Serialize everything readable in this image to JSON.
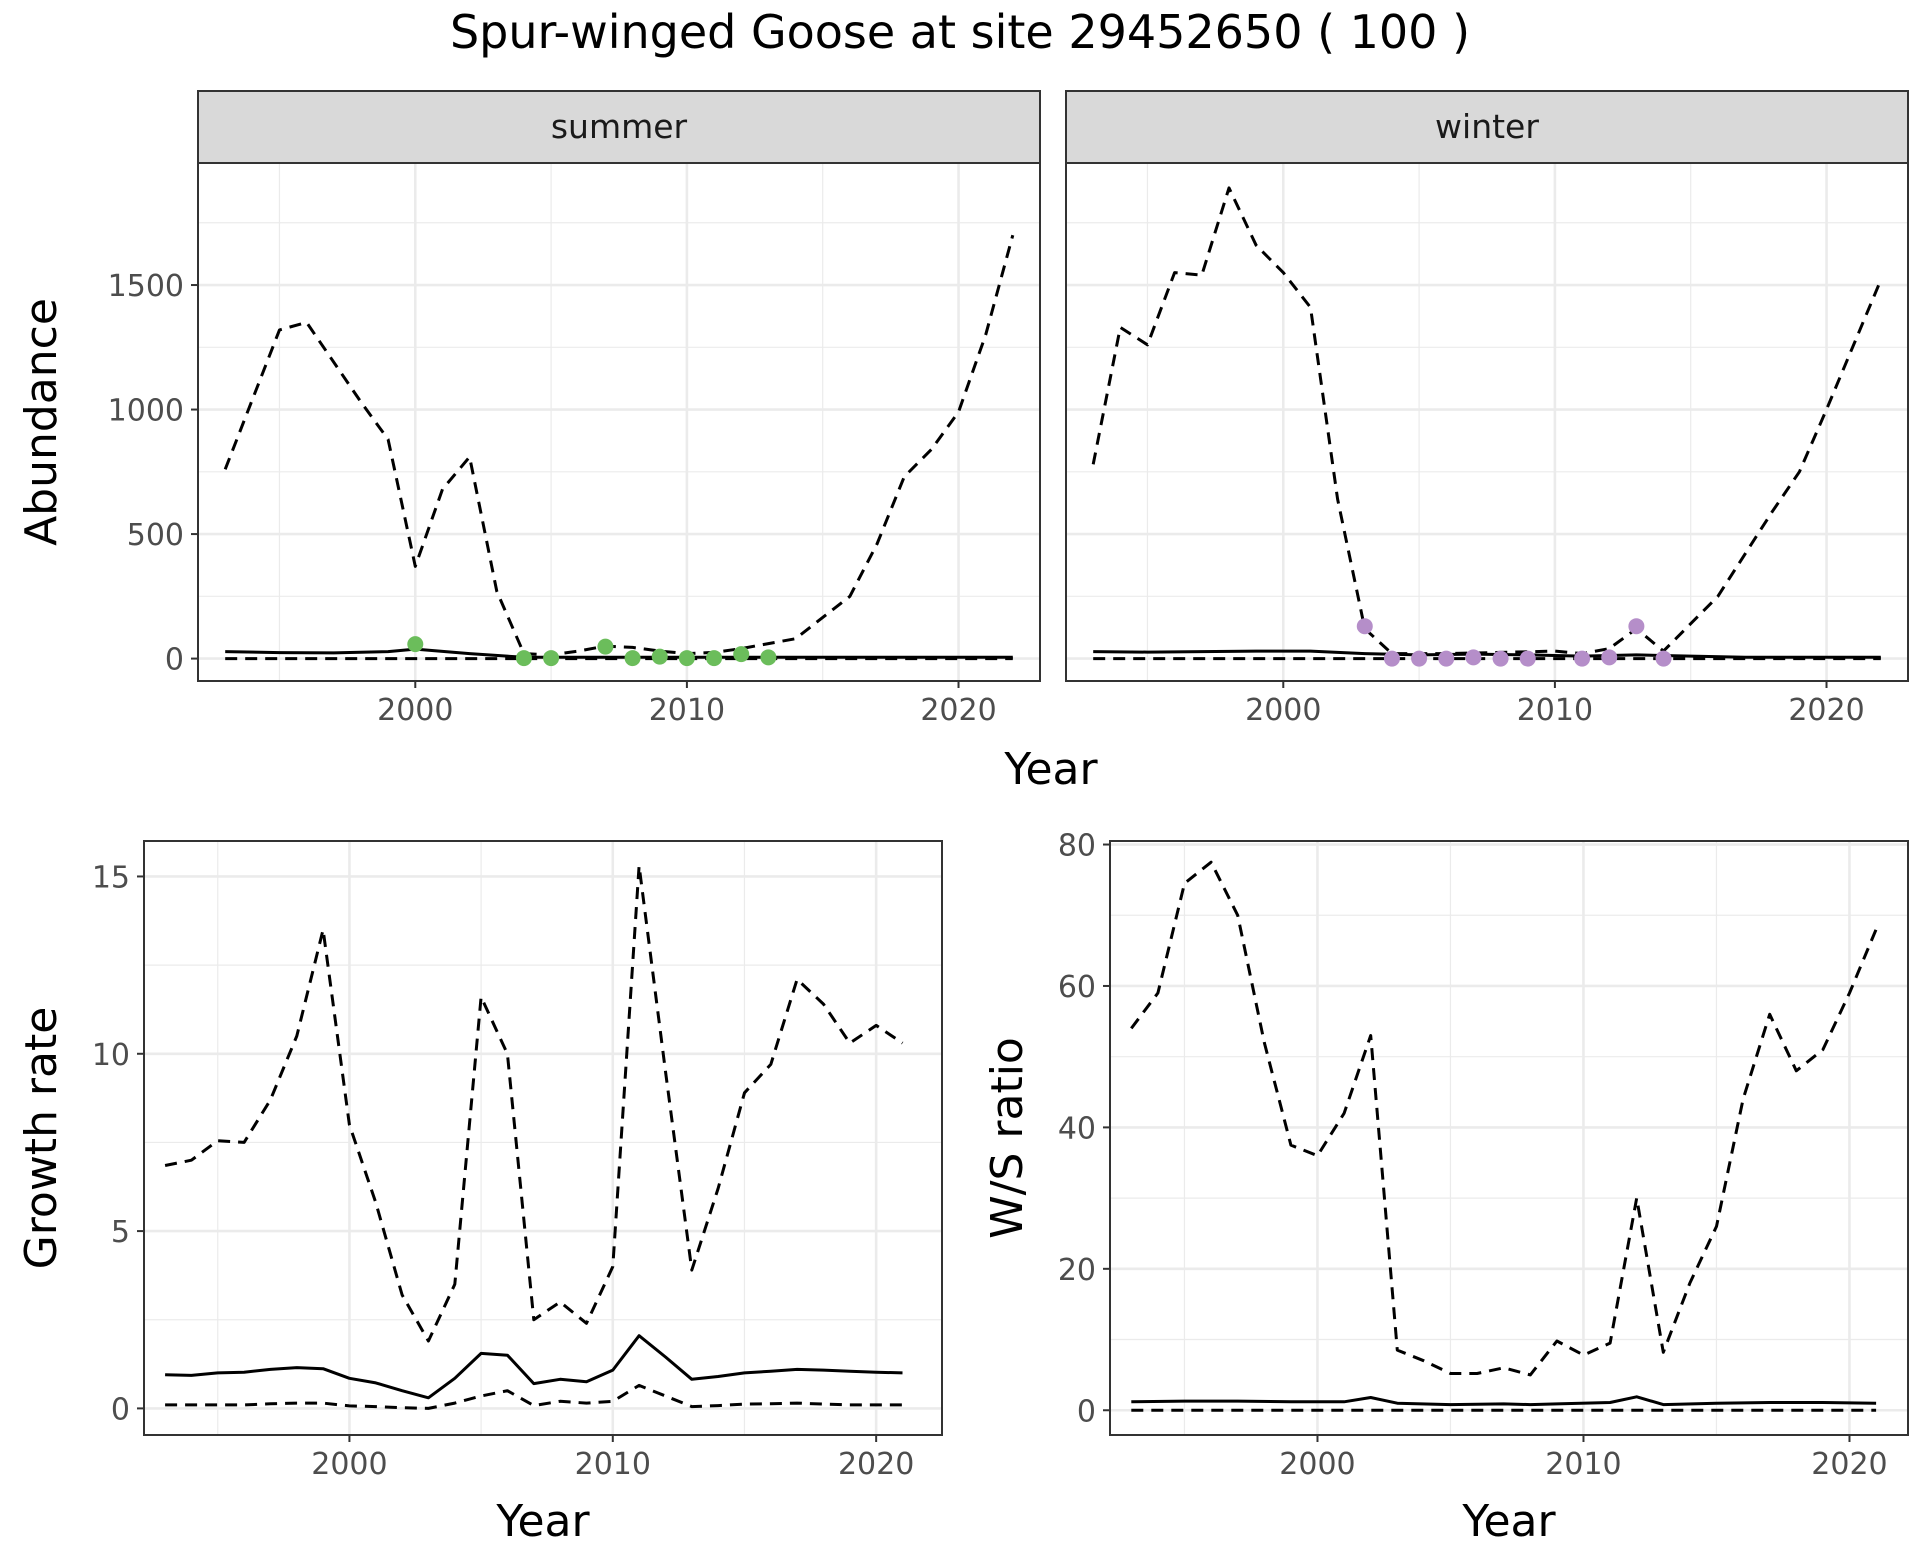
{
  "chart_data": [
    {
      "type": "line",
      "title": "Spur-winged Goose at site 29452650 ( 100 )",
      "xlabel": "Year",
      "ylabel": "Abundance",
      "xlim": [
        1992,
        2023
      ],
      "ylim": [
        -90,
        1990
      ],
      "x_ticks": [
        2000,
        2010,
        2020
      ],
      "y_ticks": [
        0,
        500,
        1000,
        1500
      ],
      "grid": true,
      "panels": [
        {
          "label": "summer",
          "point_color": "#6bbd5b",
          "series": [
            {
              "line": "solid",
              "x": [
                1993,
                1995,
                1997,
                1999,
                2000,
                2002,
                2004,
                2006,
                2008,
                2010,
                2012,
                2014,
                2016,
                2018,
                2020,
                2022
              ],
              "values": [
                28,
                24,
                23,
                28,
                38,
                20,
                5,
                5,
                5,
                5,
                5,
                5,
                5,
                5,
                5,
                5
              ]
            },
            {
              "line": "dashed",
              "x": [
                1993,
                1995,
                1996,
                1998,
                1999,
                2000,
                2001,
                2002,
                2003,
                2004,
                2005,
                2006,
                2007,
                2008,
                2009,
                2010,
                2011,
                2012,
                2013,
                2014,
                2016,
                2017,
                2018,
                2019,
                2020,
                2021,
                2022
              ],
              "values": [
                760,
                1320,
                1350,
                1030,
                880,
                370,
                680,
                810,
                270,
                20,
                15,
                30,
                50,
                45,
                30,
                20,
                25,
                40,
                60,
                80,
                250,
                460,
                730,
                840,
                990,
                1300,
                1700
              ]
            },
            {
              "line": "dashed",
              "x": [
                1993,
                2022
              ],
              "values": [
                0,
                0
              ]
            }
          ],
          "points": {
            "x": [
              2000,
              2004,
              2005,
              2007,
              2008,
              2009,
              2010,
              2011,
              2012,
              2013
            ],
            "values": [
              58,
              2,
              2,
              48,
              2,
              8,
              2,
              2,
              18,
              5
            ]
          }
        },
        {
          "label": "winter",
          "point_color": "#b58ec9",
          "series": [
            {
              "line": "solid",
              "x": [
                1993,
                1995,
                1997,
                1999,
                2001,
                2003,
                2005,
                2007,
                2009,
                2011,
                2013,
                2015,
                2017,
                2019,
                2022
              ],
              "values": [
                28,
                26,
                28,
                30,
                30,
                20,
                15,
                18,
                15,
                10,
                15,
                10,
                5,
                5,
                5
              ]
            },
            {
              "line": "dashed",
              "x": [
                1993,
                1994,
                1995,
                1996,
                1997,
                1998,
                1999,
                2000,
                2001,
                2002,
                2003,
                2004,
                2006,
                2008,
                2010,
                2011,
                2012,
                2013,
                2014,
                2016,
                2018,
                2019,
                2020,
                2022
              ],
              "values": [
                780,
                1330,
                1260,
                1550,
                1540,
                1890,
                1660,
                1550,
                1410,
                640,
                120,
                20,
                20,
                25,
                30,
                20,
                40,
                120,
                30,
                250,
                590,
                750,
                1000,
                1520
              ]
            },
            {
              "line": "dashed",
              "x": [
                1993,
                2022
              ],
              "values": [
                0,
                0
              ]
            }
          ],
          "points": {
            "x": [
              2003,
              2004,
              2005,
              2006,
              2007,
              2008,
              2009,
              2011,
              2012,
              2013,
              2014
            ],
            "values": [
              130,
              0,
              0,
              0,
              5,
              0,
              0,
              0,
              5,
              130,
              0
            ]
          }
        }
      ]
    },
    {
      "type": "line",
      "xlabel": "Year",
      "ylabel": "Growth rate",
      "xlim": [
        1992.2,
        2022.5
      ],
      "ylim": [
        -0.75,
        16
      ],
      "x_ticks": [
        2000,
        2010,
        2020
      ],
      "y_ticks": [
        0,
        5,
        10,
        15
      ],
      "grid": true,
      "series": [
        {
          "line": "solid",
          "x": [
            1993,
            1994,
            1995,
            1996,
            1997,
            1998,
            1999,
            2000,
            2001,
            2002,
            2003,
            2004,
            2005,
            2006,
            2007,
            2008,
            2009,
            2010,
            2011,
            2012,
            2013,
            2014,
            2015,
            2016,
            2017,
            2018,
            2019,
            2020,
            2021
          ],
          "values": [
            0.95,
            0.93,
            1.0,
            1.02,
            1.1,
            1.15,
            1.12,
            0.85,
            0.72,
            0.5,
            0.3,
            0.85,
            1.55,
            1.5,
            0.7,
            0.82,
            0.75,
            1.08,
            2.05,
            1.45,
            0.82,
            0.9,
            1.0,
            1.05,
            1.1,
            1.08,
            1.05,
            1.02,
            1.0
          ]
        },
        {
          "line": "dashed",
          "x": [
            1993,
            1994,
            1995,
            1996,
            1997,
            1998,
            1999,
            2000,
            2001,
            2002,
            2003,
            2004,
            2005,
            2006,
            2007,
            2008,
            2009,
            2010,
            2011,
            2012,
            2013,
            2014,
            2015,
            2016,
            2017,
            2018,
            2019,
            2020,
            2021
          ],
          "values": [
            6.85,
            7.0,
            7.55,
            7.5,
            8.7,
            10.5,
            13.5,
            8.0,
            5.8,
            3.2,
            1.9,
            3.5,
            11.6,
            10.0,
            2.5,
            3.0,
            2.4,
            4.0,
            15.3,
            9.5,
            3.9,
            6.2,
            8.9,
            9.7,
            12.1,
            11.4,
            10.3,
            10.8,
            10.3
          ]
        },
        {
          "line": "dashed",
          "x": [
            1993,
            1994,
            1995,
            1996,
            1997,
            1998,
            1999,
            2000,
            2001,
            2002,
            2003,
            2004,
            2005,
            2006,
            2007,
            2008,
            2009,
            2010,
            2011,
            2012,
            2013,
            2014,
            2015,
            2016,
            2017,
            2018,
            2019,
            2020,
            2021
          ],
          "values": [
            0.1,
            0.1,
            0.1,
            0.1,
            0.13,
            0.15,
            0.15,
            0.07,
            0.05,
            0.02,
            0.0,
            0.15,
            0.35,
            0.5,
            0.08,
            0.2,
            0.15,
            0.2,
            0.65,
            0.35,
            0.05,
            0.08,
            0.12,
            0.13,
            0.15,
            0.12,
            0.1,
            0.1,
            0.1
          ]
        }
      ]
    },
    {
      "type": "line",
      "xlabel": "Year",
      "ylabel": "W/S ratio",
      "xlim": [
        1992.2,
        2022.2
      ],
      "ylim": [
        -3.5,
        80.5
      ],
      "x_ticks": [
        2000,
        2010,
        2020
      ],
      "y_ticks": [
        0,
        20,
        40,
        60,
        80
      ],
      "grid": true,
      "series": [
        {
          "line": "solid",
          "x": [
            1993,
            1995,
            1997,
            1999,
            2001,
            2002,
            2003,
            2005,
            2007,
            2008,
            2009,
            2011,
            2012,
            2013,
            2015,
            2017,
            2019,
            2021
          ],
          "values": [
            1.2,
            1.3,
            1.3,
            1.2,
            1.2,
            1.8,
            1.0,
            0.8,
            0.9,
            0.8,
            0.9,
            1.1,
            1.9,
            0.8,
            1.0,
            1.1,
            1.1,
            1.0
          ]
        },
        {
          "line": "dashed",
          "x": [
            1993,
            1994,
            1995,
            1996,
            1997,
            1998,
            1999,
            2000,
            2001,
            2002,
            2003,
            2004,
            2005,
            2006,
            2007,
            2008,
            2009,
            2010,
            2011,
            2012,
            2013,
            2014,
            2015,
            2016,
            2017,
            2018,
            2019,
            2020,
            2021
          ],
          "values": [
            54,
            59,
            74.5,
            77.5,
            70,
            52,
            37.5,
            36,
            42,
            53,
            8.5,
            7.0,
            5.2,
            5.2,
            6.0,
            5.0,
            9.8,
            7.8,
            9.5,
            30,
            8.2,
            18,
            26,
            44,
            56,
            48,
            51,
            59,
            68
          ]
        },
        {
          "line": "dashed",
          "x": [
            1993,
            2021
          ],
          "values": [
            0,
            0
          ]
        }
      ]
    }
  ]
}
